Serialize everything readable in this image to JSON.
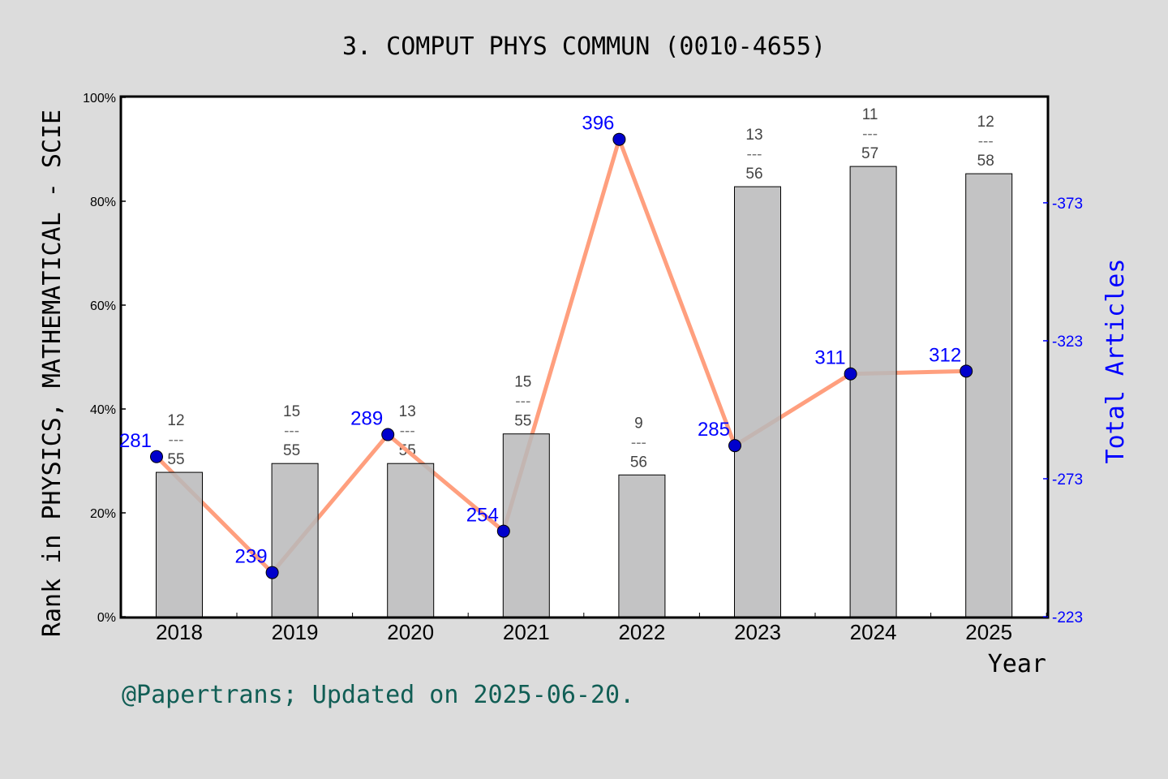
{
  "chart_data": {
    "type": "bar+line",
    "title": "3. COMPUT PHYS COMMUN (0010-4655)",
    "xlabel": "Year",
    "ylabel": "Rank in PHYSICS, MATHEMATICAL - SCIE",
    "y2label": "Total Articles",
    "categories": [
      "2018",
      "2019",
      "2020",
      "2021",
      "2022",
      "2023",
      "2024",
      "2025"
    ],
    "bar_values_percent": [
      27.8,
      29.5,
      29.5,
      35.2,
      27.3,
      82.8,
      86.7,
      85.3
    ],
    "rank_labels": [
      {
        "rank": "12",
        "total": "55"
      },
      {
        "rank": "15",
        "total": "55"
      },
      {
        "rank": "13",
        "total": "55"
      },
      {
        "rank": "15",
        "total": "55"
      },
      {
        "rank": "9",
        "total": "56"
      },
      {
        "rank": "13",
        "total": "56"
      },
      {
        "rank": "11",
        "total": "57"
      },
      {
        "rank": "12",
        "total": "58"
      }
    ],
    "fraction_bar": "---",
    "articles": [
      281,
      239,
      289,
      254,
      396,
      285,
      311,
      312
    ],
    "ylim": [
      0,
      100
    ],
    "yticks": [
      "0%",
      "20%",
      "40%",
      "60%",
      "80%",
      "100%"
    ],
    "y2lim": [
      223,
      411.2
    ],
    "y2ticks": [
      223,
      273,
      323,
      373
    ],
    "grid": false,
    "colors": {
      "bar": "#b8b9ba",
      "line": "#ff9f7e",
      "point": "#0000cc",
      "article_label": "#0000ff",
      "y2": "#0000ff",
      "footer": "#115e55",
      "background": "#dcdcdc"
    }
  },
  "footer": "@Papertrans; Updated on 2025-06-20."
}
